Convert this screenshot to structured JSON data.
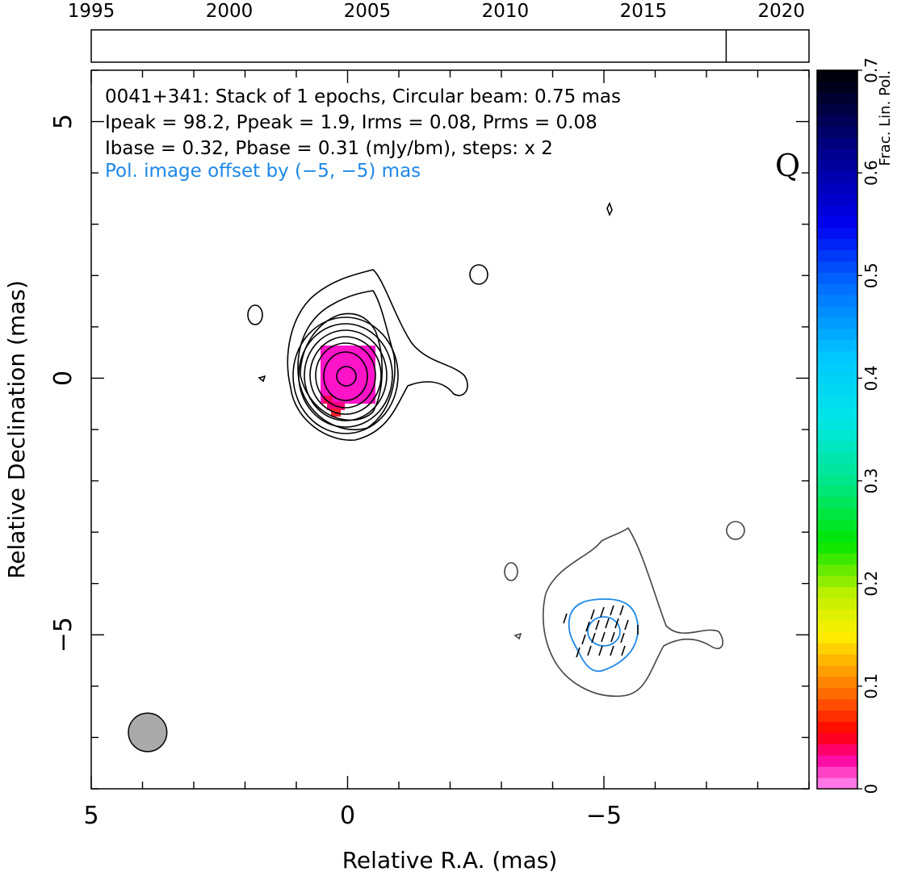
{
  "chart_data": {
    "type": "contour",
    "annotations": {
      "line1": "0041+341: Stack of 1 epochs, Circular beam: 0.75 mas",
      "line2": "Ipeak = 98.2, Ppeak = 1.9, Irms = 0.08, Prms = 0.08",
      "line3": "Ibase = 0.32, Pbase = 0.31 (mJy/bm), steps: x 2",
      "line4": "Pol. image offset by (−5, −5) mas",
      "band": "Q"
    },
    "xlabel": "Relative R.A. (mas)",
    "ylabel": "Relative Declination (mas)",
    "xlim": [
      5,
      -9
    ],
    "ylim": [
      -8,
      6
    ],
    "x_ticks": [
      {
        "value": 5,
        "label": "5"
      },
      {
        "value": 0,
        "label": "0"
      },
      {
        "value": -5,
        "label": "−5"
      }
    ],
    "y_ticks": [
      {
        "value": 5,
        "label": "5"
      },
      {
        "value": 0,
        "label": "0"
      },
      {
        "value": -5,
        "label": "−5"
      }
    ],
    "timeline": {
      "xlim": [
        1995,
        2021
      ],
      "ticks": [
        {
          "value": 1995,
          "label": "1995"
        },
        {
          "value": 2000,
          "label": "2000"
        },
        {
          "value": 2005,
          "label": "2005"
        },
        {
          "value": 2010,
          "label": "2010"
        },
        {
          "value": 2015,
          "label": "2015"
        },
        {
          "value": 2020,
          "label": "2020"
        }
      ],
      "epochs": [
        2018.0
      ]
    },
    "colorbar": {
      "label": "Frac. Lin. Pol.",
      "range": [
        0,
        0.7
      ],
      "ticks": [
        {
          "value": 0,
          "label": "0"
        },
        {
          "value": 0.1,
          "label": "0.1"
        },
        {
          "value": 0.2,
          "label": "0.2"
        },
        {
          "value": 0.3,
          "label": "0.3"
        },
        {
          "value": 0.4,
          "label": "0.4"
        },
        {
          "value": 0.5,
          "label": "0.5"
        },
        {
          "value": 0.6,
          "label": "0.6"
        },
        {
          "value": 0.7,
          "label": "0.7"
        }
      ]
    },
    "beam": {
      "ra": 3.9,
      "dec": -6.9,
      "diameter_mas": 0.75
    },
    "grid": false
  }
}
